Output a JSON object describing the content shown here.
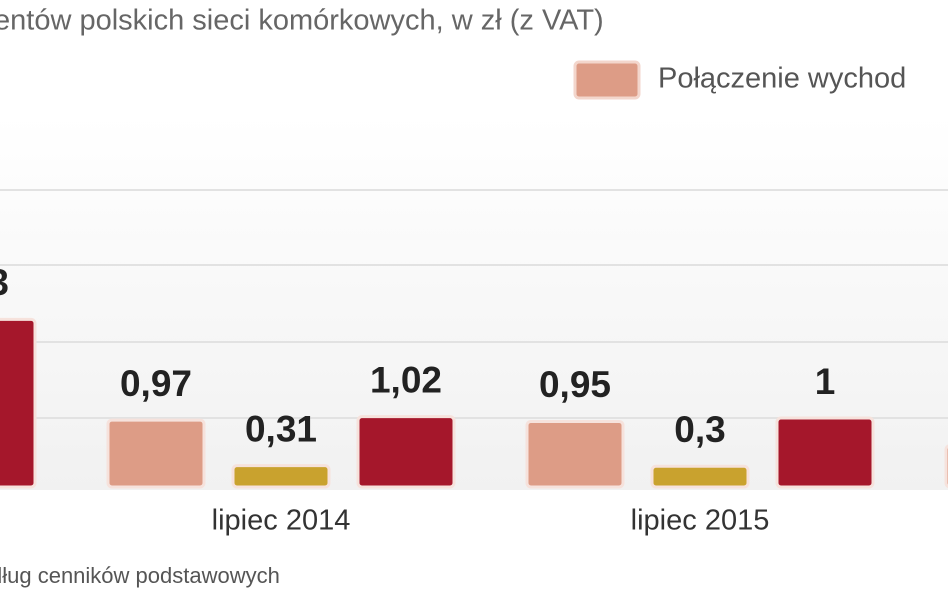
{
  "chart_data": {
    "type": "bar",
    "title": "entów polskich sieci komórkowych, w zł (z VAT)",
    "source": "dług cenników podstawowych",
    "categories": [
      null,
      "lipiec 2014",
      "lipiec 2015",
      null
    ],
    "series": [
      {
        "name": "Połączenie wychod",
        "color": "#dd9c86",
        "values": [
          null,
          0.97,
          0.95,
          0.6
        ],
        "value_labels": [
          null,
          "0,97",
          "0,95",
          null
        ]
      },
      {
        "color": "#c9a22e",
        "values": [
          null,
          0.31,
          0.3,
          null
        ],
        "value_labels": [
          null,
          "0,31",
          "0,3",
          null
        ]
      },
      {
        "color": "#a5172b",
        "values": [
          2.43,
          1.02,
          1,
          null
        ],
        "value_labels": [
          null,
          "1,02",
          "1",
          null
        ]
      }
    ],
    "annotations": [
      "3"
    ]
  }
}
